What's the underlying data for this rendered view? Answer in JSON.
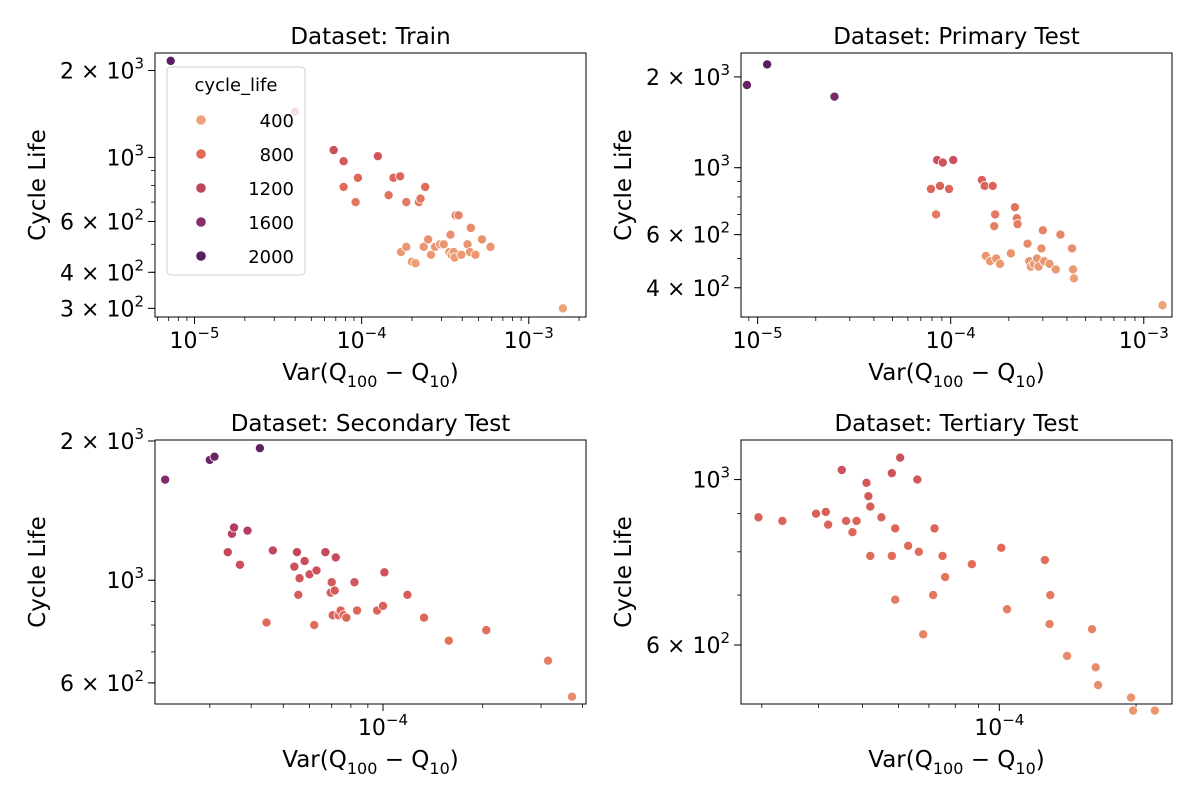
{
  "colors": {
    "400": "#eca378",
    "800": "#e16a58",
    "1200": "#c0425c",
    "1600": "#8a2b6c",
    "2000": "#56205f"
  },
  "chart_data": [
    {
      "type": "scatter",
      "title": "Dataset: Train",
      "xlabel": "Var(Q100 − Q10)",
      "ylabel": "Cycle Life",
      "xscale": "log",
      "yscale": "log",
      "xlim": [
        5.8e-06,
        0.0022
      ],
      "ylim": [
        280,
        2300
      ],
      "xticks": [
        {
          "value": 1e-05,
          "label": "10",
          "exp": "−5"
        },
        {
          "value": 0.0001,
          "label": "10",
          "exp": "−4"
        },
        {
          "value": 0.001,
          "label": "10",
          "exp": "−3"
        }
      ],
      "yticks": [
        {
          "value": 300,
          "mant": "3",
          "exp": "2"
        },
        {
          "value": 400,
          "mant": "4",
          "exp": "2"
        },
        {
          "value": 600,
          "mant": "6",
          "exp": "2"
        },
        {
          "value": 1000,
          "mant": "",
          "exp": "3"
        },
        {
          "value": 2000,
          "mant": "2",
          "exp": "3"
        }
      ],
      "legend": {
        "title": "cycle_life",
        "position": "upper-left",
        "entries": [
          {
            "label": "400",
            "color": "#eca378"
          },
          {
            "label": "800",
            "color": "#e16a58"
          },
          {
            "label": "1200",
            "color": "#c0425c"
          },
          {
            "label": "1600",
            "color": "#8a2b6c"
          },
          {
            "label": "2000",
            "color": "#56205f"
          }
        ]
      },
      "points": [
        [
          7.2e-06,
          2160
        ],
        [
          4e-05,
          1440
        ],
        [
          6.8e-05,
          1060
        ],
        [
          7.8e-05,
          970
        ],
        [
          0.000125,
          1010
        ],
        [
          7.8e-05,
          790
        ],
        [
          9.2e-05,
          700
        ],
        [
          9.5e-05,
          850
        ],
        [
          0.000145,
          740
        ],
        [
          0.000155,
          850
        ],
        [
          0.00017,
          860
        ],
        [
          0.000185,
          700
        ],
        [
          0.00022,
          700
        ],
        [
          0.000225,
          720
        ],
        [
          0.00024,
          790
        ],
        [
          0.000172,
          470
        ],
        [
          0.000185,
          490
        ],
        [
          0.0002,
          435
        ],
        [
          0.00021,
          430
        ],
        [
          0.000235,
          490
        ],
        [
          0.00025,
          520
        ],
        [
          0.00026,
          460
        ],
        [
          0.000275,
          490
        ],
        [
          0.000295,
          500
        ],
        [
          0.00031,
          500
        ],
        [
          0.000335,
          470
        ],
        [
          0.00034,
          540
        ],
        [
          0.000345,
          460
        ],
        [
          0.000355,
          470
        ],
        [
          0.00036,
          450
        ],
        [
          0.000365,
          630
        ],
        [
          0.00038,
          630
        ],
        [
          0.000395,
          460
        ],
        [
          0.00043,
          500
        ],
        [
          0.000445,
          470
        ],
        [
          0.00045,
          570
        ],
        [
          0.00048,
          460
        ],
        [
          0.000525,
          520
        ],
        [
          0.00059,
          490
        ],
        [
          0.0016,
          300
        ]
      ]
    },
    {
      "type": "scatter",
      "title": "Dataset: Primary Test",
      "xlabel": "Var(Q100 − Q10)",
      "ylabel": "Cycle Life",
      "xscale": "log",
      "yscale": "log",
      "xlim": [
        8.2e-06,
        0.0014
      ],
      "ylim": [
        320,
        2400
      ],
      "xticks": [
        {
          "value": 1e-05,
          "label": "10",
          "exp": "−5"
        },
        {
          "value": 0.0001,
          "label": "10",
          "exp": "−4"
        },
        {
          "value": 0.001,
          "label": "10",
          "exp": "−3"
        }
      ],
      "yticks": [
        {
          "value": 400,
          "mant": "4",
          "exp": "2"
        },
        {
          "value": 600,
          "mant": "6",
          "exp": "2"
        },
        {
          "value": 1000,
          "mant": "",
          "exp": "3"
        },
        {
          "value": 2000,
          "mant": "2",
          "exp": "3"
        }
      ],
      "points": [
        [
          8.8e-06,
          1880
        ],
        [
          1.12e-05,
          2200
        ],
        [
          2.5e-05,
          1720
        ],
        [
          7.9e-05,
          850
        ],
        [
          8.4e-05,
          700
        ],
        [
          8.5e-05,
          1060
        ],
        [
          8.8e-05,
          870
        ],
        [
          9.1e-05,
          1040
        ],
        [
          9.8e-05,
          850
        ],
        [
          0.000103,
          1060
        ],
        [
          0.000145,
          910
        ],
        [
          0.00015,
          870
        ],
        [
          0.000152,
          510
        ],
        [
          0.00016,
          490
        ],
        [
          0.000165,
          870
        ],
        [
          0.000168,
          640
        ],
        [
          0.00017,
          700
        ],
        [
          0.000172,
          500
        ],
        [
          0.00018,
          480
        ],
        [
          0.000205,
          520
        ],
        [
          0.000215,
          740
        ],
        [
          0.00022,
          680
        ],
        [
          0.000222,
          650
        ],
        [
          0.00025,
          560
        ],
        [
          0.000255,
          490
        ],
        [
          0.00026,
          470
        ],
        [
          0.00027,
          480
        ],
        [
          0.00028,
          500
        ],
        [
          0.000285,
          470
        ],
        [
          0.000295,
          540
        ],
        [
          0.0003,
          620
        ],
        [
          0.000305,
          490
        ],
        [
          0.000325,
          480
        ],
        [
          0.00035,
          460
        ],
        [
          0.00037,
          600
        ],
        [
          0.000425,
          540
        ],
        [
          0.00043,
          460
        ],
        [
          0.000435,
          430
        ],
        [
          0.00125,
          350
        ]
      ]
    },
    {
      "type": "scatter",
      "title": "Dataset: Secondary Test",
      "xlabel": "Var(Q100 − Q10)",
      "ylabel": "Cycle Life",
      "xscale": "log",
      "yscale": "log",
      "xlim": [
        2.05e-05,
        0.00041
      ],
      "ylim": [
        540,
        2010
      ],
      "xticks": [
        {
          "value": 0.0001,
          "label": "10",
          "exp": "−4"
        }
      ],
      "yticks": [
        {
          "value": 600,
          "mant": "6",
          "exp": "2"
        },
        {
          "value": 1000,
          "mant": "",
          "exp": "3"
        },
        {
          "value": 2000,
          "mant": "2",
          "exp": "3"
        }
      ],
      "points": [
        [
          2.2e-05,
          1650
        ],
        [
          3e-05,
          1820
        ],
        [
          3.1e-05,
          1850
        ],
        [
          3.4e-05,
          1150
        ],
        [
          3.5e-05,
          1260
        ],
        [
          3.55e-05,
          1300
        ],
        [
          3.7e-05,
          1080
        ],
        [
          3.9e-05,
          1280
        ],
        [
          4.25e-05,
          1930
        ],
        [
          4.45e-05,
          810
        ],
        [
          4.65e-05,
          1160
        ],
        [
          5.4e-05,
          1070
        ],
        [
          5.5e-05,
          1150
        ],
        [
          5.55e-05,
          930
        ],
        [
          5.6e-05,
          1010
        ],
        [
          5.8e-05,
          1100
        ],
        [
          6e-05,
          1030
        ],
        [
          6.2e-05,
          800
        ],
        [
          6.3e-05,
          1050
        ],
        [
          6.7e-05,
          1150
        ],
        [
          6.95e-05,
          940
        ],
        [
          7e-05,
          990
        ],
        [
          7.05e-05,
          840
        ],
        [
          7.15e-05,
          950
        ],
        [
          7.2e-05,
          1120
        ],
        [
          7.35e-05,
          840
        ],
        [
          7.45e-05,
          860
        ],
        [
          7.6e-05,
          840
        ],
        [
          7.75e-05,
          830
        ],
        [
          8.2e-05,
          990
        ],
        [
          8.35e-05,
          860
        ],
        [
          9.6e-05,
          860
        ],
        [
          0.000101,
          1040
        ],
        [
          0.0001,
          880
        ],
        [
          0.0001185,
          930
        ],
        [
          0.000133,
          830
        ],
        [
          0.000158,
          740
        ],
        [
          0.000205,
          780
        ],
        [
          0.000315,
          670
        ],
        [
          0.000372,
          560
        ]
      ]
    },
    {
      "type": "scatter",
      "title": "Dataset: Tertiary Test",
      "xlabel": "Var(Q100 − Q10)",
      "ylabel": "Cycle Life",
      "xscale": "log",
      "yscale": "log",
      "xlim": [
        2.7e-05,
        0.00024
      ],
      "ylim": [
        500,
        1130
      ],
      "xticks": [
        {
          "value": 0.0001,
          "label": "10",
          "exp": "−4"
        }
      ],
      "yticks": [
        {
          "value": 600,
          "mant": "6",
          "exp": "2"
        },
        {
          "value": 1000,
          "mant": "",
          "exp": "3"
        }
      ],
      "points": [
        [
          2.95e-05,
          890
        ],
        [
          3.33e-05,
          880
        ],
        [
          3.95e-05,
          900
        ],
        [
          4.15e-05,
          905
        ],
        [
          4.2e-05,
          870
        ],
        [
          4.5e-05,
          1030
        ],
        [
          4.6e-05,
          880
        ],
        [
          4.75e-05,
          850
        ],
        [
          4.85e-05,
          880
        ],
        [
          5.1e-05,
          990
        ],
        [
          5.15e-05,
          950
        ],
        [
          5.2e-05,
          920
        ],
        [
          5.2e-05,
          790
        ],
        [
          5.5e-05,
          890
        ],
        [
          5.8e-05,
          790
        ],
        [
          5.8e-05,
          1020
        ],
        [
          5.9e-05,
          690
        ],
        [
          5.9e-05,
          860
        ],
        [
          6.05e-05,
          1070
        ],
        [
          6.3e-05,
          815
        ],
        [
          6.6e-05,
          1000
        ],
        [
          6.65e-05,
          800
        ],
        [
          6.8e-05,
          620
        ],
        [
          7.15e-05,
          700
        ],
        [
          7.2e-05,
          860
        ],
        [
          7.5e-05,
          790
        ],
        [
          7.6e-05,
          740
        ],
        [
          8.7e-05,
          770
        ],
        [
          0.000101,
          810
        ],
        [
          0.000104,
          670
        ],
        [
          0.000126,
          780
        ],
        [
          0.0001295,
          700
        ],
        [
          0.000129,
          640
        ],
        [
          0.000141,
          580
        ],
        [
          0.00016,
          630
        ],
        [
          0.000163,
          560
        ],
        [
          0.000165,
          530
        ],
        [
          0.000195,
          510
        ],
        [
          0.000197,
          490
        ],
        [
          0.00022,
          490
        ]
      ]
    }
  ]
}
